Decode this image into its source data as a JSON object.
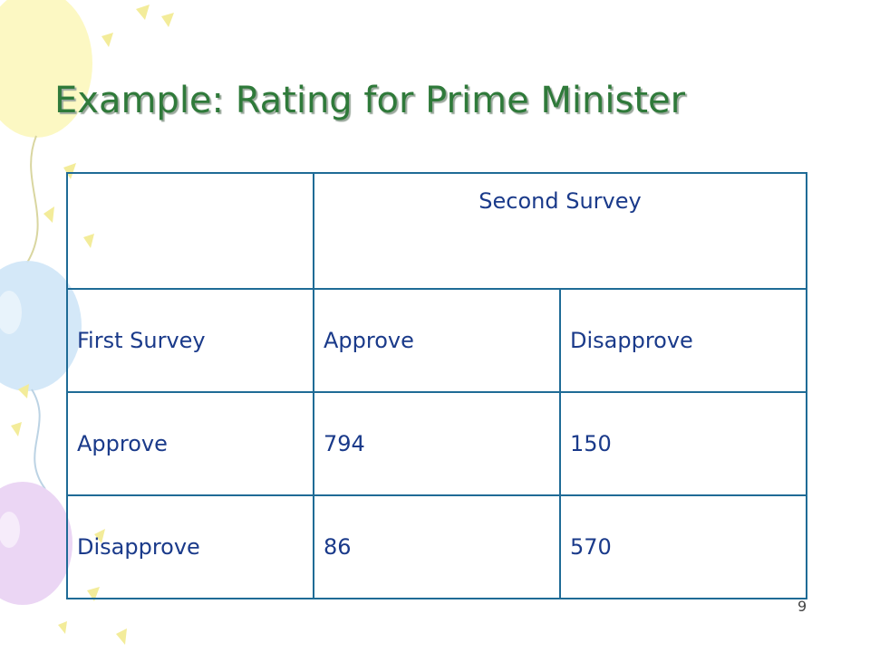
{
  "slide": {
    "title": "Example: Rating for Prime Minister",
    "page_number": "9"
  },
  "table": {
    "header_title": "Second Survey",
    "col_headers": [
      "First Survey",
      "Approve",
      "Disapprove"
    ],
    "rows": [
      {
        "label": "Approve",
        "values": [
          "794",
          "150"
        ]
      },
      {
        "label": "Disapprove",
        "values": [
          "86",
          "570"
        ]
      }
    ]
  },
  "colors": {
    "title": "#2f7a3a",
    "table_border": "#1f6b96",
    "table_text": "#1a3a8a"
  }
}
